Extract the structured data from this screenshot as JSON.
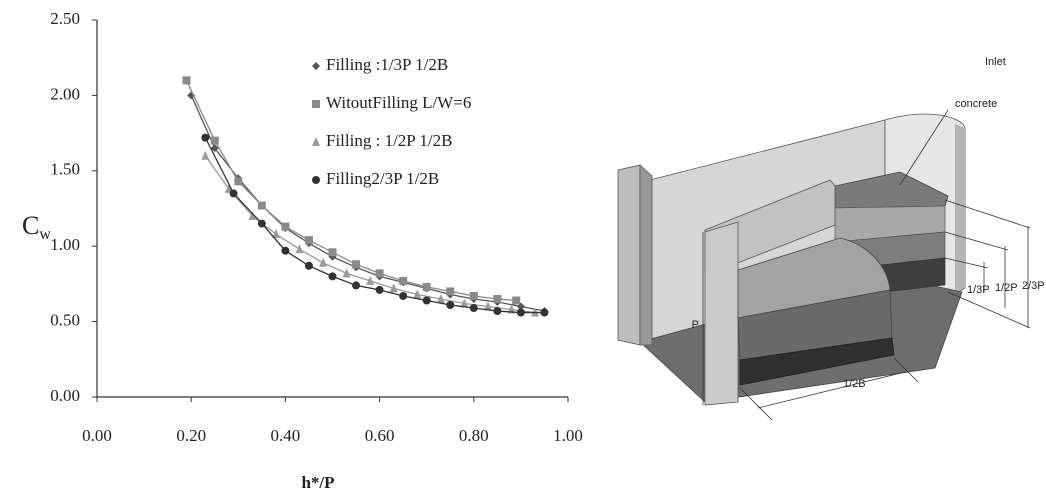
{
  "chart_data": {
    "type": "line",
    "x_label": "h*/P",
    "y_label": "C",
    "y_label_sub": "w",
    "xlim": [
      0,
      1
    ],
    "ylim": [
      0,
      2.5
    ],
    "xticks": [
      {
        "value": 0,
        "label": "0.00"
      },
      {
        "value": 0.2,
        "label": "0.20"
      },
      {
        "value": 0.4,
        "label": "0.40"
      },
      {
        "value": 0.6,
        "label": "0.60"
      },
      {
        "value": 0.8,
        "label": "0.80"
      },
      {
        "value": 1,
        "label": "1.00"
      }
    ],
    "yticks": [
      {
        "value": 0,
        "label": "0.00"
      },
      {
        "value": 0.5,
        "label": "0.50"
      },
      {
        "value": 1,
        "label": "1.00"
      },
      {
        "value": 1.5,
        "label": "1.50"
      },
      {
        "value": 2,
        "label": "2.00"
      },
      {
        "value": 2.5,
        "label": "2.50"
      }
    ],
    "series": [
      {
        "name": "Filling :1/3P  1/2B",
        "color": "#555555",
        "marker": "diamond",
        "x": [
          0.2,
          0.25,
          0.3,
          0.35,
          0.4,
          0.45,
          0.5,
          0.55,
          0.6,
          0.65,
          0.7,
          0.75,
          0.8,
          0.85,
          0.9,
          0.95
        ],
        "values": [
          2.0,
          1.65,
          1.45,
          1.27,
          1.12,
          1.02,
          0.93,
          0.86,
          0.8,
          0.76,
          0.72,
          0.68,
          0.65,
          0.63,
          0.6,
          0.57
        ]
      },
      {
        "name": "WitoutFilling  L/W=6",
        "color": "#8a8a8a",
        "marker": "square",
        "x": [
          0.19,
          0.25,
          0.3,
          0.35,
          0.4,
          0.45,
          0.5,
          0.55,
          0.6,
          0.65,
          0.7,
          0.75,
          0.8,
          0.85,
          0.89
        ],
        "values": [
          2.1,
          1.7,
          1.43,
          1.27,
          1.13,
          1.04,
          0.96,
          0.88,
          0.82,
          0.77,
          0.73,
          0.7,
          0.67,
          0.65,
          0.64
        ]
      },
      {
        "name": "Filling : 1/2P  1/2B",
        "color": "#9a9a9a",
        "marker": "triangle",
        "x": [
          0.23,
          0.28,
          0.33,
          0.38,
          0.43,
          0.48,
          0.53,
          0.58,
          0.63,
          0.68,
          0.73,
          0.78,
          0.83,
          0.88,
          0.93
        ],
        "values": [
          1.6,
          1.38,
          1.2,
          1.08,
          0.98,
          0.89,
          0.82,
          0.77,
          0.72,
          0.68,
          0.65,
          0.62,
          0.6,
          0.58,
          0.56
        ]
      },
      {
        "name": "Filling2/3P  1/2B",
        "color": "#333333",
        "marker": "circle",
        "x": [
          0.23,
          0.29,
          0.35,
          0.4,
          0.45,
          0.5,
          0.55,
          0.6,
          0.65,
          0.7,
          0.75,
          0.8,
          0.85,
          0.9,
          0.95
        ],
        "values": [
          1.72,
          1.35,
          1.15,
          0.97,
          0.87,
          0.8,
          0.74,
          0.71,
          0.67,
          0.64,
          0.61,
          0.59,
          0.57,
          0.56,
          0.56
        ]
      }
    ]
  },
  "diagram": {
    "inlet": "Inlet",
    "concrete": "concrete",
    "third": "1/3P",
    "half": "1/2P",
    "two_thirds": "2/3P",
    "height": "P",
    "width": "1/2B"
  }
}
